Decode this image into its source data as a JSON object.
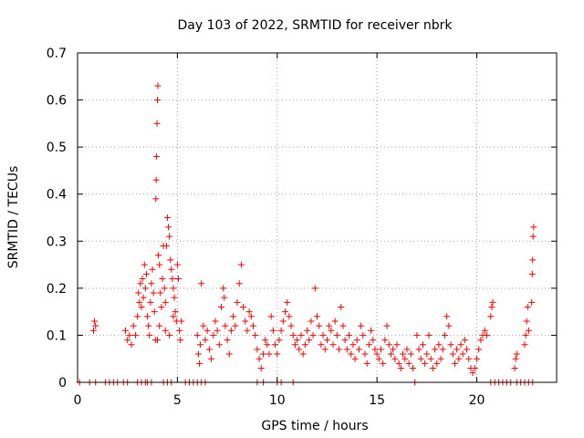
{
  "chart_data": {
    "type": "scatter",
    "title": "Day 103 of 2022, SRMTID for receiver nbrk",
    "xlabel": "GPS time / hours",
    "ylabel": "SRMTID / TECUs",
    "xlim": [
      0,
      24
    ],
    "ylim": [
      0,
      0.7
    ],
    "xticks": [
      0,
      5,
      10,
      15,
      20
    ],
    "xtick_labels": [
      "0",
      "5",
      "10",
      "15",
      "20"
    ],
    "yticks": [
      0,
      0.1,
      0.2,
      0.3,
      0.4,
      0.5,
      0.6,
      0.7
    ],
    "ytick_labels": [
      "0",
      "0.1",
      "0.2",
      "0.3",
      "0.4",
      "0.5",
      "0.6",
      "0.7"
    ],
    "grid": true,
    "marker": "plus",
    "series": [
      {
        "name": "SRMTID",
        "color": "#ff0000",
        "points": [
          [
            0.1,
            0
          ],
          [
            0.6,
            0
          ],
          [
            0.9,
            0
          ],
          [
            1.4,
            0
          ],
          [
            1.6,
            0
          ],
          [
            1.8,
            0
          ],
          [
            2.0,
            0
          ],
          [
            2.3,
            0
          ],
          [
            2.5,
            0
          ],
          [
            3.0,
            0
          ],
          [
            3.2,
            0
          ],
          [
            3.4,
            0
          ],
          [
            3.5,
            0
          ],
          [
            3.7,
            0
          ],
          [
            4.3,
            0
          ],
          [
            4.5,
            0
          ],
          [
            4.7,
            0
          ],
          [
            5.4,
            0
          ],
          [
            5.6,
            0
          ],
          [
            5.8,
            0
          ],
          [
            6.0,
            0
          ],
          [
            6.2,
            0
          ],
          [
            6.4,
            0
          ],
          [
            9.0,
            0
          ],
          [
            9.3,
            0
          ],
          [
            10.0,
            0
          ],
          [
            10.2,
            0
          ],
          [
            10.8,
            0
          ],
          [
            16.9,
            0
          ],
          [
            20.7,
            0
          ],
          [
            20.9,
            0
          ],
          [
            21.1,
            0
          ],
          [
            21.3,
            0
          ],
          [
            21.5,
            0
          ],
          [
            21.7,
            0
          ],
          [
            22.0,
            0
          ],
          [
            22.2,
            0
          ],
          [
            22.4,
            0
          ],
          [
            22.6,
            0
          ],
          [
            22.8,
            0
          ],
          [
            0.8,
            0.11
          ],
          [
            0.85,
            0.13
          ],
          [
            0.9,
            0.12
          ],
          [
            2.4,
            0.11
          ],
          [
            2.5,
            0.09
          ],
          [
            2.6,
            0.1
          ],
          [
            2.7,
            0.08
          ],
          [
            2.8,
            0.12
          ],
          [
            2.9,
            0.1
          ],
          [
            3.0,
            0.14
          ],
          [
            3.05,
            0.19
          ],
          [
            3.1,
            0.17
          ],
          [
            3.15,
            0.21
          ],
          [
            3.2,
            0.16
          ],
          [
            3.25,
            0.22
          ],
          [
            3.3,
            0.18
          ],
          [
            3.35,
            0.25
          ],
          [
            3.4,
            0.2
          ],
          [
            3.45,
            0.23
          ],
          [
            3.5,
            0.14
          ],
          [
            3.55,
            0.12
          ],
          [
            3.6,
            0.1
          ],
          [
            3.65,
            0.17
          ],
          [
            3.7,
            0.21
          ],
          [
            3.75,
            0.24
          ],
          [
            3.8,
            0.19
          ],
          [
            3.85,
            0.15
          ],
          [
            3.9,
            0.09
          ],
          [
            3.92,
            0.39
          ],
          [
            3.94,
            0.43
          ],
          [
            3.96,
            0.48
          ],
          [
            3.98,
            0.55
          ],
          [
            4.0,
            0.6
          ],
          [
            4.02,
            0.63
          ],
          [
            4.05,
            0.27
          ],
          [
            4.1,
            0.25
          ],
          [
            4.15,
            0.19
          ],
          [
            4.2,
            0.16
          ],
          [
            4.25,
            0.22
          ],
          [
            4.3,
            0.29
          ],
          [
            4.35,
            0.2
          ],
          [
            4.4,
            0.17
          ],
          [
            4.45,
            0.29
          ],
          [
            4.5,
            0.35
          ],
          [
            4.55,
            0.33
          ],
          [
            4.6,
            0.31
          ],
          [
            4.65,
            0.26
          ],
          [
            4.7,
            0.24
          ],
          [
            4.75,
            0.22
          ],
          [
            4.8,
            0.2
          ],
          [
            4.85,
            0.18
          ],
          [
            4.9,
            0.15
          ],
          [
            4.95,
            0.13
          ],
          [
            5.0,
            0.25
          ],
          [
            5.05,
            0.22
          ],
          [
            5.1,
            0.11
          ],
          [
            5.15,
            0.09
          ],
          [
            5.2,
            0.13
          ],
          [
            4.0,
            0.09
          ],
          [
            4.1,
            0.12
          ],
          [
            4.4,
            0.11
          ],
          [
            4.6,
            0.1
          ],
          [
            4.8,
            0.14
          ],
          [
            6.0,
            0.1
          ],
          [
            6.05,
            0.06
          ],
          [
            6.1,
            0.04
          ],
          [
            6.15,
            0.08
          ],
          [
            6.2,
            0.21
          ],
          [
            6.3,
            0.12
          ],
          [
            6.4,
            0.09
          ],
          [
            6.5,
            0.11
          ],
          [
            6.6,
            0.07
          ],
          [
            6.7,
            0.05
          ],
          [
            6.8,
            0.1
          ],
          [
            6.9,
            0.13
          ],
          [
            7.0,
            0.11
          ],
          [
            7.1,
            0.08
          ],
          [
            7.2,
            0.16
          ],
          [
            7.3,
            0.2
          ],
          [
            7.35,
            0.18
          ],
          [
            7.4,
            0.12
          ],
          [
            7.5,
            0.09
          ],
          [
            7.6,
            0.06
          ],
          [
            7.7,
            0.11
          ],
          [
            7.8,
            0.14
          ],
          [
            7.9,
            0.12
          ],
          [
            8.0,
            0.17
          ],
          [
            8.1,
            0.21
          ],
          [
            8.2,
            0.25
          ],
          [
            8.3,
            0.16
          ],
          [
            8.4,
            0.13
          ],
          [
            8.5,
            0.11
          ],
          [
            8.6,
            0.15
          ],
          [
            8.7,
            0.14
          ],
          [
            8.8,
            0.12
          ],
          [
            8.9,
            0.1
          ],
          [
            9.0,
            0.07
          ],
          [
            9.1,
            0.05
          ],
          [
            9.2,
            0.03
          ],
          [
            9.3,
            0.06
          ],
          [
            9.4,
            0.09
          ],
          [
            9.5,
            0.08
          ],
          [
            9.6,
            0.06
          ],
          [
            9.7,
            0.14
          ],
          [
            9.8,
            0.11
          ],
          [
            9.9,
            0.08
          ],
          [
            10.0,
            0.06
          ],
          [
            10.1,
            0.09
          ],
          [
            10.2,
            0.11
          ],
          [
            10.3,
            0.13
          ],
          [
            10.4,
            0.15
          ],
          [
            10.5,
            0.17
          ],
          [
            10.6,
            0.14
          ],
          [
            10.7,
            0.12
          ],
          [
            10.8,
            0.1
          ],
          [
            10.9,
            0.08
          ],
          [
            11.0,
            0.09
          ],
          [
            11.1,
            0.07
          ],
          [
            11.2,
            0.1
          ],
          [
            11.3,
            0.06
          ],
          [
            11.4,
            0.08
          ],
          [
            11.5,
            0.11
          ],
          [
            11.6,
            0.09
          ],
          [
            11.7,
            0.13
          ],
          [
            11.8,
            0.1
          ],
          [
            11.9,
            0.2
          ],
          [
            12.0,
            0.14
          ],
          [
            12.1,
            0.12
          ],
          [
            12.2,
            0.08
          ],
          [
            12.3,
            0.1
          ],
          [
            12.4,
            0.07
          ],
          [
            12.5,
            0.09
          ],
          [
            12.6,
            0.12
          ],
          [
            12.7,
            0.11
          ],
          [
            12.8,
            0.08
          ],
          [
            12.9,
            0.13
          ],
          [
            13.0,
            0.1
          ],
          [
            13.1,
            0.07
          ],
          [
            13.2,
            0.16
          ],
          [
            13.3,
            0.12
          ],
          [
            13.4,
            0.09
          ],
          [
            13.5,
            0.07
          ],
          [
            13.6,
            0.1
          ],
          [
            13.7,
            0.06
          ],
          [
            13.8,
            0.08
          ],
          [
            13.9,
            0.05
          ],
          [
            14.0,
            0.09
          ],
          [
            14.1,
            0.07
          ],
          [
            14.2,
            0.12
          ],
          [
            14.3,
            0.1
          ],
          [
            14.4,
            0.06
          ],
          [
            14.5,
            0.04
          ],
          [
            14.6,
            0.08
          ],
          [
            14.7,
            0.11
          ],
          [
            14.8,
            0.09
          ],
          [
            14.9,
            0.07
          ],
          [
            15.0,
            0.06
          ],
          [
            15.1,
            0.05
          ],
          [
            15.2,
            0.07
          ],
          [
            15.3,
            0.04
          ],
          [
            15.4,
            0.09
          ],
          [
            15.5,
            0.12
          ],
          [
            15.6,
            0.08
          ],
          [
            15.7,
            0.06
          ],
          [
            15.8,
            0.07
          ],
          [
            15.9,
            0.05
          ],
          [
            16.0,
            0.08
          ],
          [
            16.1,
            0.04
          ],
          [
            16.2,
            0.03
          ],
          [
            16.3,
            0.06
          ],
          [
            16.4,
            0.05
          ],
          [
            16.5,
            0.07
          ],
          [
            16.6,
            0.04
          ],
          [
            16.7,
            0.06
          ],
          [
            16.8,
            0.03
          ],
          [
            17.0,
            0.1
          ],
          [
            17.1,
            0.07
          ],
          [
            17.2,
            0.05
          ],
          [
            17.3,
            0.08
          ],
          [
            17.4,
            0.04
          ],
          [
            17.5,
            0.06
          ],
          [
            17.6,
            0.1
          ],
          [
            17.7,
            0.05
          ],
          [
            17.8,
            0.03
          ],
          [
            17.9,
            0.07
          ],
          [
            18.0,
            0.04
          ],
          [
            18.1,
            0.08
          ],
          [
            18.2,
            0.05
          ],
          [
            18.3,
            0.07
          ],
          [
            18.4,
            0.1
          ],
          [
            18.5,
            0.14
          ],
          [
            18.6,
            0.12
          ],
          [
            18.7,
            0.08
          ],
          [
            18.8,
            0.06
          ],
          [
            18.9,
            0.04
          ],
          [
            19.0,
            0.07
          ],
          [
            19.1,
            0.05
          ],
          [
            19.2,
            0.08
          ],
          [
            19.3,
            0.06
          ],
          [
            19.4,
            0.09
          ],
          [
            19.5,
            0.07
          ],
          [
            19.6,
            0.05
          ],
          [
            19.7,
            0.03
          ],
          [
            19.8,
            0.02
          ],
          [
            19.9,
            0.03
          ],
          [
            20.0,
            0.05
          ],
          [
            20.1,
            0.07
          ],
          [
            20.2,
            0.09
          ],
          [
            20.3,
            0.1
          ],
          [
            20.4,
            0.11
          ],
          [
            20.5,
            0.1
          ],
          [
            20.7,
            0.14
          ],
          [
            20.75,
            0.16
          ],
          [
            20.8,
            0.17
          ],
          [
            21.9,
            0.03
          ],
          [
            21.95,
            0.05
          ],
          [
            22.0,
            0.06
          ],
          [
            22.4,
            0.08
          ],
          [
            22.45,
            0.1
          ],
          [
            22.5,
            0.13
          ],
          [
            22.55,
            0.16
          ],
          [
            22.6,
            0.11
          ],
          [
            22.75,
            0.17
          ],
          [
            22.78,
            0.23
          ],
          [
            22.8,
            0.26
          ],
          [
            22.82,
            0.31
          ],
          [
            22.85,
            0.33
          ]
        ]
      }
    ]
  }
}
